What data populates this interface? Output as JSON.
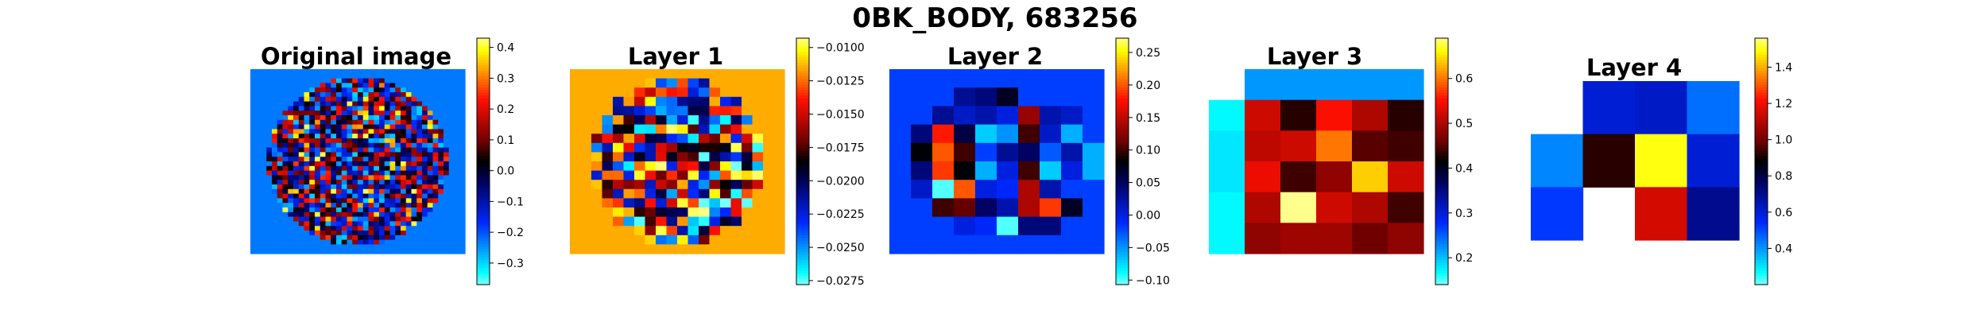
{
  "chart_data": {
    "type": "heatmap",
    "title": "0BK_BODY, 683256",
    "colormap": "jet-like (cyan-blue-black-red-yellow)",
    "grid": false,
    "panels": [
      {
        "title": "Original image",
        "grid_size": [
          40,
          40
        ],
        "vmin": -0.37,
        "vmax": 0.43,
        "colorbar_ticks": [
          -0.3,
          -0.2,
          -0.1,
          0.0,
          0.1,
          0.2,
          0.3,
          0.4
        ],
        "colorbar_tick_labels": [
          "−0.3",
          "−0.2",
          "−0.1",
          "0.0",
          "0.1",
          "0.2",
          "0.3",
          "0.4"
        ]
      },
      {
        "title": "Layer 1",
        "grid_size": [
          20,
          20
        ],
        "vmin": -0.0278,
        "vmax": -0.0093,
        "colorbar_ticks": [
          -0.0275,
          -0.025,
          -0.0225,
          -0.02,
          -0.0175,
          -0.015,
          -0.0125,
          -0.01
        ],
        "colorbar_tick_labels": [
          "−0.0275",
          "−0.0250",
          "−0.0225",
          "−0.0200",
          "−0.0175",
          "−0.0150",
          "−0.0125",
          "−0.0100"
        ]
      },
      {
        "title": "Layer 2",
        "grid_size": [
          10,
          10
        ],
        "vmin": -0.107,
        "vmax": 0.272,
        "colorbar_ticks": [
          -0.1,
          -0.05,
          0.0,
          0.05,
          0.1,
          0.15,
          0.2,
          0.25
        ],
        "colorbar_tick_labels": [
          "−0.10",
          "−0.05",
          "0.00",
          "0.05",
          "0.10",
          "0.15",
          "0.20",
          "0.25"
        ],
        "values": [
          [
            -0.02,
            -0.02,
            -0.02,
            -0.02,
            -0.02,
            -0.02,
            -0.02,
            -0.02,
            -0.02,
            -0.02
          ],
          [
            -0.02,
            -0.02,
            -0.02,
            0.03,
            0.04,
            0.07,
            -0.02,
            -0.02,
            -0.02,
            -0.02
          ],
          [
            -0.02,
            -0.02,
            0.03,
            0.01,
            0.02,
            0.0,
            0.13,
            0.02,
            0.01,
            -0.02
          ],
          [
            -0.02,
            0.04,
            0.18,
            0.06,
            -0.07,
            -0.05,
            0.1,
            0.01,
            -0.06,
            -0.02
          ],
          [
            -0.02,
            0.08,
            0.2,
            0.1,
            -0.02,
            0.03,
            0.05,
            -0.03,
            0.02,
            -0.06
          ],
          [
            -0.02,
            0.04,
            0.19,
            0.08,
            -0.06,
            0.0,
            0.1,
            -0.07,
            0.0,
            -0.06
          ],
          [
            -0.02,
            0.01,
            -0.1,
            0.2,
            0.0,
            -0.01,
            0.14,
            0.02,
            -0.02,
            -0.02
          ],
          [
            -0.02,
            -0.02,
            0.1,
            0.11,
            0.05,
            0.02,
            0.14,
            0.19,
            0.07,
            -0.02
          ],
          [
            -0.02,
            -0.02,
            -0.02,
            0.0,
            -0.01,
            -0.1,
            0.04,
            0.04,
            -0.02,
            -0.02
          ],
          [
            -0.02,
            -0.02,
            -0.02,
            -0.02,
            -0.02,
            -0.02,
            -0.02,
            -0.02,
            -0.02,
            -0.02
          ]
        ]
      },
      {
        "title": "Layer 3",
        "grid_size": [
          6,
          6
        ],
        "vmin": 0.14,
        "vmax": 0.69,
        "colorbar_ticks": [
          0.2,
          0.3,
          0.4,
          0.5,
          0.6
        ],
        "colorbar_tick_labels": [
          "0.2",
          "0.3",
          "0.4",
          "0.5",
          "0.6"
        ],
        "values": [
          [
            null,
            0.22,
            0.22,
            0.22,
            0.22,
            0.22
          ],
          [
            0.17,
            0.52,
            0.43,
            0.55,
            0.5,
            0.43
          ],
          [
            0.18,
            0.51,
            0.52,
            0.6,
            0.45,
            0.44
          ],
          [
            0.18,
            0.54,
            0.44,
            0.48,
            0.64,
            0.52
          ],
          [
            0.17,
            0.5,
            0.69,
            0.52,
            0.5,
            0.44
          ],
          [
            0.17,
            0.48,
            0.49,
            0.49,
            0.46,
            0.48
          ]
        ]
      },
      {
        "title": "Layer 4",
        "grid_size": [
          4,
          3
        ],
        "vmin": 0.2,
        "vmax": 1.56,
        "colorbar_ticks": [
          0.4,
          0.6,
          0.8,
          1.0,
          1.2,
          1.4
        ],
        "colorbar_tick_labels": [
          "0.4",
          "0.6",
          "0.8",
          "1.0",
          "1.2",
          "1.4"
        ],
        "values": [
          [
            null,
            0.6,
            0.62,
            0.45
          ],
          [
            0.42,
            0.92,
            1.5,
            0.6
          ],
          [
            0.52,
            null,
            1.15,
            0.7
          ]
        ]
      }
    ]
  }
}
